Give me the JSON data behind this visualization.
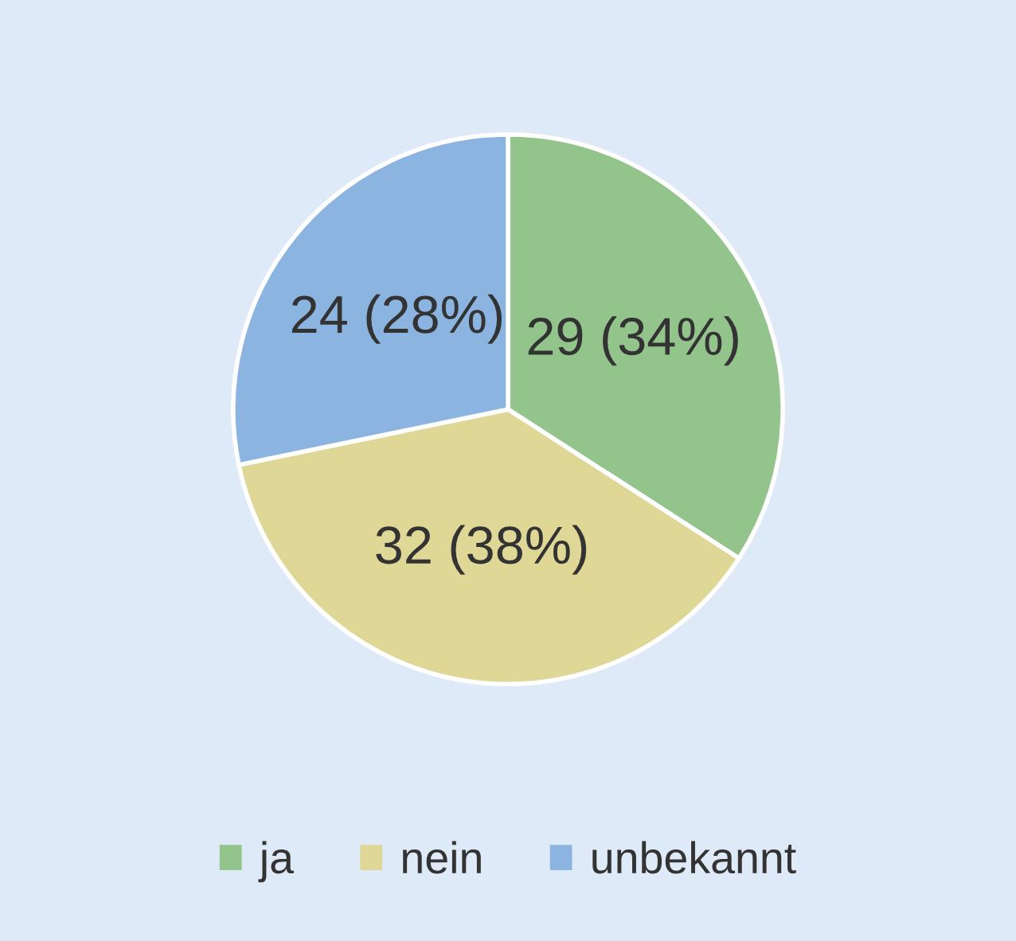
{
  "chart_data": {
    "type": "pie",
    "categories": [
      "ja",
      "nein",
      "unbekannt"
    ],
    "values": [
      29,
      32,
      24
    ],
    "value_labels": [
      "29 (34%)",
      "32 (38%)",
      "24 (28%)"
    ],
    "colors": [
      "#93c48b",
      "#ded795",
      "#8cb4e1"
    ],
    "legend": "bottom"
  }
}
